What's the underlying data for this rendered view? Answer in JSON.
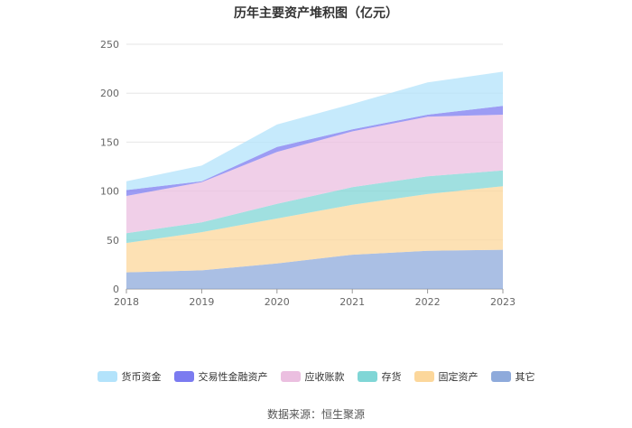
{
  "chart_data": {
    "type": "area",
    "stacked": true,
    "title": "历年主要资产堆积图（亿元）",
    "xlabel": "",
    "ylabel": "",
    "categories": [
      "2018",
      "2019",
      "2020",
      "2021",
      "2022",
      "2023"
    ],
    "y_ticks": [
      "0",
      "50",
      "100",
      "150",
      "200",
      "250"
    ],
    "ylim": [
      0,
      250
    ],
    "grid": true,
    "legend_position": "bottom",
    "series": [
      {
        "name": "其它",
        "color": "#8eaadb",
        "values": [
          17,
          19,
          26,
          35,
          39,
          40
        ]
      },
      {
        "name": "固定资产",
        "color": "#fcd79b",
        "values": [
          30,
          39,
          46,
          51,
          58,
          65
        ]
      },
      {
        "name": "存货",
        "color": "#80d6d6",
        "values": [
          10,
          10,
          15,
          18,
          18,
          16
        ]
      },
      {
        "name": "应收账款",
        "color": "#ebbfe0",
        "values": [
          38,
          41,
          53,
          57,
          61,
          57
        ]
      },
      {
        "name": "交易性金融资产",
        "color": "#7b7bf0",
        "values": [
          6,
          1,
          5,
          2,
          2,
          9
        ]
      },
      {
        "name": "货币资金",
        "color": "#b3e3fb",
        "values": [
          9,
          16,
          23,
          26,
          33,
          35
        ]
      }
    ]
  },
  "legend_order": [
    "货币资金",
    "交易性金融资产",
    "应收账款",
    "存货",
    "固定资产",
    "其它"
  ],
  "source_text": "数据来源：恒生聚源"
}
